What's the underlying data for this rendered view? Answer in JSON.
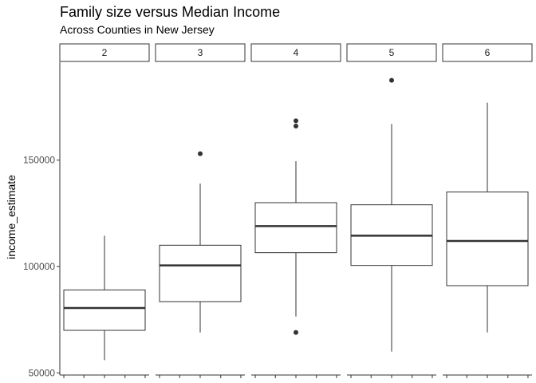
{
  "chart_data": {
    "type": "boxplot",
    "title": "Family size versus Median Income",
    "subtitle": "Across Counties in New Jersey",
    "xlabel": "",
    "ylabel": "income_estimate",
    "ylim": [
      49000,
      196000
    ],
    "y_ticks": [
      50000,
      100000,
      150000
    ],
    "y_tick_labels": [
      "50000",
      "100000",
      "150000"
    ],
    "facet_variable": "family size",
    "grid": false,
    "legend": "none",
    "colors": {
      "box_fill": "#ffffff",
      "line": "#333333",
      "median": "#333333",
      "outlier": "#333333",
      "strip_border": "#333333"
    },
    "panels": [
      {
        "label": "2",
        "whisker_low": 56000,
        "q1": 70000,
        "median": 80500,
        "q3": 89000,
        "whisker_high": 114500,
        "outliers": []
      },
      {
        "label": "3",
        "whisker_low": 69000,
        "q1": 83500,
        "median": 100500,
        "q3": 110000,
        "whisker_high": 139000,
        "outliers": [
          153000
        ]
      },
      {
        "label": "4",
        "whisker_low": 76500,
        "q1": 106500,
        "median": 119000,
        "q3": 130000,
        "whisker_high": 149500,
        "outliers": [
          69000,
          166000,
          168500
        ]
      },
      {
        "label": "5",
        "whisker_low": 60000,
        "q1": 100500,
        "median": 114500,
        "q3": 129000,
        "whisker_high": 167000,
        "outliers": [
          187500
        ]
      },
      {
        "label": "6",
        "whisker_low": 69000,
        "q1": 91000,
        "median": 112000,
        "q3": 135000,
        "whisker_high": 177000,
        "outliers": []
      }
    ]
  }
}
